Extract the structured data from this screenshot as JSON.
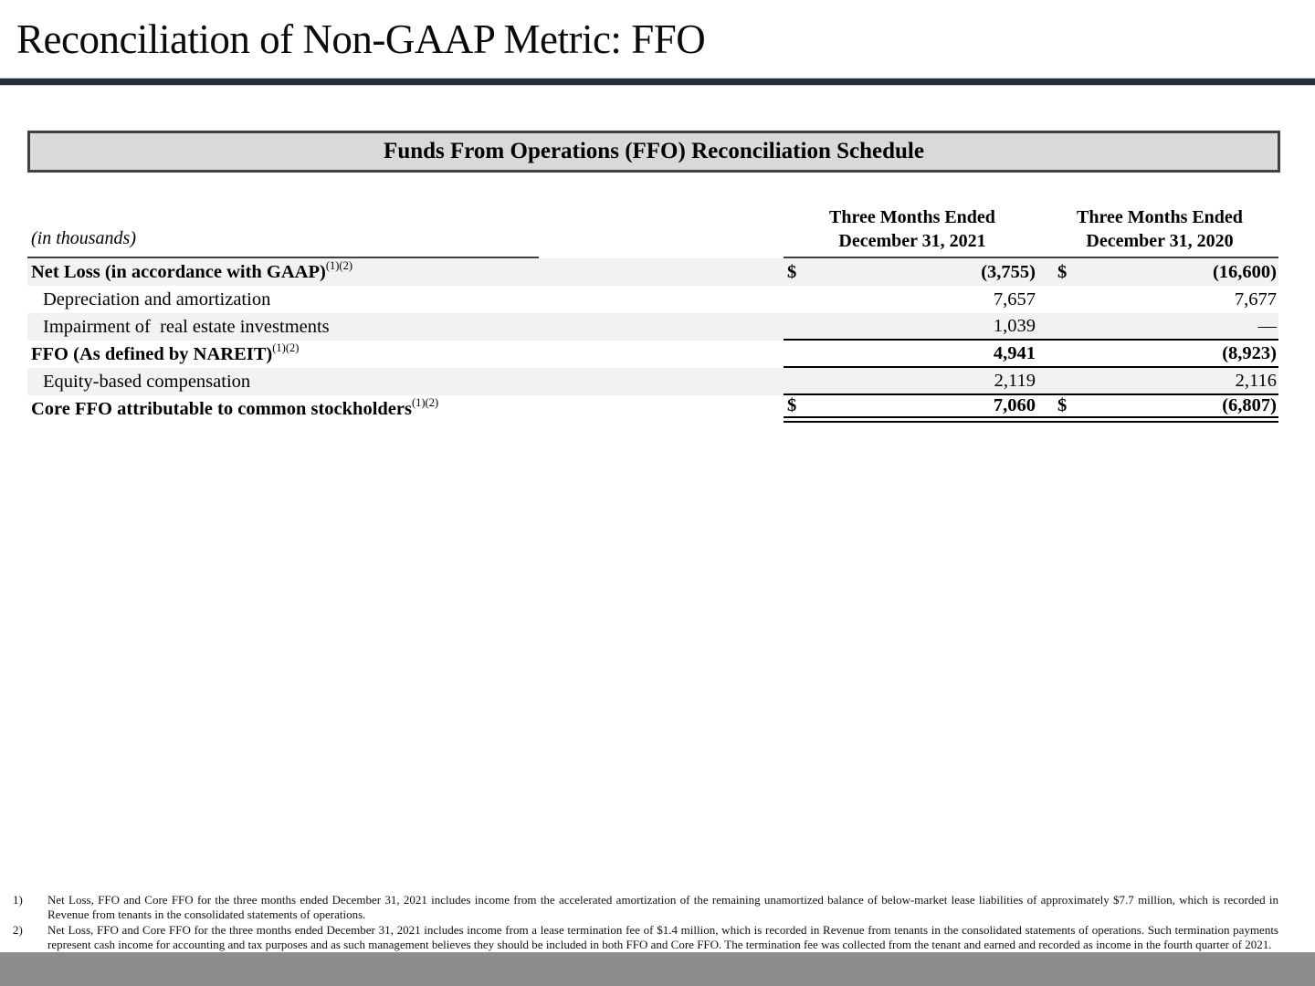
{
  "page": {
    "title": "Reconciliation of Non-GAAP Metric: FFO"
  },
  "schedule": {
    "title": "Funds From Operations (FFO) Reconciliation Schedule"
  },
  "table": {
    "units_note": "(in thousands)",
    "col_headers": [
      {
        "line1": "Three Months Ended",
        "line2": "December 31, 2021"
      },
      {
        "line1": "Three Months Ended",
        "line2": "December 31, 2020"
      }
    ],
    "rows": [
      {
        "label": "Net Loss (in accordance with GAAP)",
        "sup": "(1)(2)",
        "cur1": "$",
        "v1": "(3,755)",
        "cur2": "$",
        "v2": "(16,600)"
      },
      {
        "label": "Depreciation and amortization",
        "sup": "",
        "cur1": "",
        "v1": "7,657",
        "cur2": "",
        "v2": "7,677"
      },
      {
        "label": "Impairment of  real estate investments",
        "sup": "",
        "cur1": "",
        "v1": "1,039",
        "cur2": "",
        "v2": "—"
      },
      {
        "label": "FFO (As defined by NAREIT)",
        "sup": "(1)(2)",
        "cur1": "",
        "v1": "4,941",
        "cur2": "",
        "v2": "(8,923)"
      },
      {
        "label": "Equity-based compensation",
        "sup": "",
        "cur1": "",
        "v1": "2,119",
        "cur2": "",
        "v2": "2,116"
      },
      {
        "label": "Core FFO attributable to common stockholders",
        "sup": "(1)(2)",
        "cur1": "$",
        "v1": "7,060",
        "cur2": "$",
        "v2": "(6,807)"
      }
    ]
  },
  "footnotes": [
    {
      "marker": "1)",
      "text": "Net Loss, FFO and Core FFO for the three months ended December 31, 2021 includes income from the accelerated amortization of the remaining unamortized balance of below-market lease liabilities of approximately $7.7 million, which is recorded in Revenue from tenants in the consolidated statements of operations."
    },
    {
      "marker": "2)",
      "text": "Net Loss, FFO and Core FFO for the three months ended December 31, 2021 includes income from a lease termination fee of $1.4 million, which is recorded in Revenue from tenants in the consolidated statements of operations. Such termination payments represent cash income for accounting and tax purposes and as such management believes they should be included in both FFO and Core FFO. The termination fee was collected from the tenant and earned and recorded as income in the fourth quarter of 2021."
    }
  ],
  "colors": {
    "title_rule": "#252e3b",
    "schedule_box_fill": "#d9d9d9",
    "schedule_box_border": "#404040",
    "row_stripe": "#f2f2f2",
    "table_line": "#000000",
    "footer_bar": "#8b8d8e"
  }
}
